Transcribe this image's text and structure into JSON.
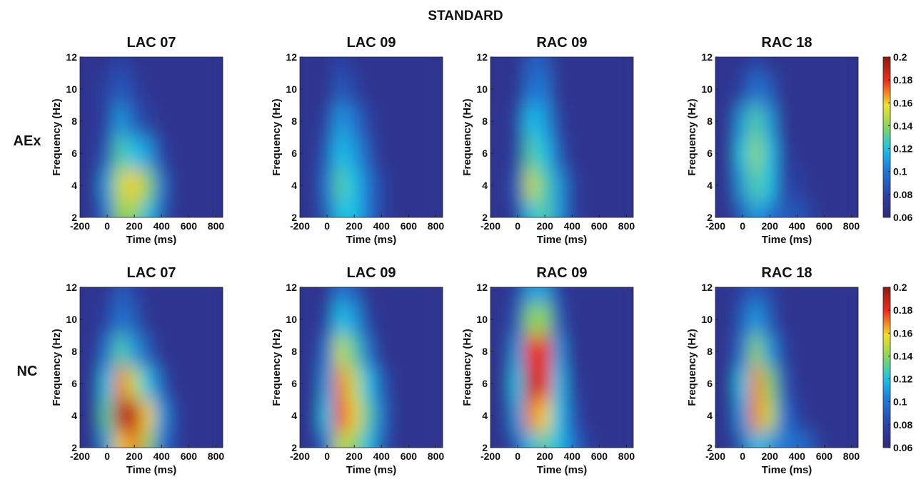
{
  "title": "STANDARD",
  "row_labels": [
    "AEx",
    "NC"
  ],
  "chart_data": [
    {
      "type": "heatmap",
      "title": "LAC 07",
      "xlabel": "Time (ms)",
      "ylabel": "Frequency (Hz)",
      "x": [
        -200,
        -100,
        0,
        100,
        200,
        300,
        400,
        500,
        600,
        700,
        800
      ],
      "y": [
        2,
        4,
        6,
        8,
        10,
        12
      ],
      "z": [
        [
          0.07,
          0.07,
          0.1,
          0.14,
          0.14,
          0.12,
          0.09,
          0.07,
          0.07,
          0.07,
          0.07
        ],
        [
          0.07,
          0.07,
          0.11,
          0.15,
          0.16,
          0.14,
          0.1,
          0.07,
          0.07,
          0.07,
          0.07
        ],
        [
          0.07,
          0.07,
          0.09,
          0.13,
          0.12,
          0.11,
          0.08,
          0.07,
          0.07,
          0.07,
          0.07
        ],
        [
          0.07,
          0.07,
          0.08,
          0.11,
          0.09,
          0.08,
          0.07,
          0.07,
          0.07,
          0.07,
          0.07
        ],
        [
          0.07,
          0.07,
          0.08,
          0.09,
          0.08,
          0.07,
          0.07,
          0.07,
          0.07,
          0.07,
          0.07
        ],
        [
          0.07,
          0.07,
          0.07,
          0.08,
          0.07,
          0.07,
          0.07,
          0.07,
          0.07,
          0.07,
          0.07
        ]
      ],
      "xlim": [
        -200,
        850
      ],
      "ylim": [
        2,
        12
      ],
      "xticks": [
        -200,
        0,
        200,
        400,
        600,
        800
      ],
      "yticks": [
        2,
        4,
        6,
        8,
        10,
        12
      ],
      "zlim": [
        0.06,
        0.2
      ]
    },
    {
      "type": "heatmap",
      "title": "LAC 09",
      "xlabel": "Time (ms)",
      "ylabel": "Frequency (Hz)",
      "x": [
        -200,
        -100,
        0,
        100,
        200,
        300,
        400,
        500,
        600,
        700,
        800
      ],
      "y": [
        2,
        4,
        6,
        8,
        10,
        12
      ],
      "z": [
        [
          0.07,
          0.07,
          0.09,
          0.12,
          0.12,
          0.1,
          0.08,
          0.07,
          0.07,
          0.07,
          0.07
        ],
        [
          0.07,
          0.07,
          0.1,
          0.13,
          0.12,
          0.1,
          0.08,
          0.07,
          0.07,
          0.07,
          0.07
        ],
        [
          0.07,
          0.07,
          0.09,
          0.12,
          0.11,
          0.09,
          0.07,
          0.07,
          0.07,
          0.07,
          0.07
        ],
        [
          0.07,
          0.07,
          0.08,
          0.11,
          0.1,
          0.08,
          0.07,
          0.07,
          0.07,
          0.07,
          0.07
        ],
        [
          0.07,
          0.07,
          0.07,
          0.09,
          0.08,
          0.07,
          0.07,
          0.07,
          0.07,
          0.07,
          0.07
        ],
        [
          0.07,
          0.07,
          0.07,
          0.08,
          0.07,
          0.07,
          0.07,
          0.07,
          0.07,
          0.07,
          0.07
        ]
      ],
      "xlim": [
        -200,
        850
      ],
      "ylim": [
        2,
        12
      ],
      "xticks": [
        -200,
        0,
        200,
        400,
        600,
        800
      ],
      "yticks": [
        2,
        4,
        6,
        8,
        10,
        12
      ],
      "zlim": [
        0.06,
        0.2
      ]
    },
    {
      "type": "heatmap",
      "title": "RAC 09",
      "xlabel": "Time (ms)",
      "ylabel": "Frequency (Hz)",
      "x": [
        -200,
        -100,
        0,
        100,
        200,
        300,
        400,
        500,
        600,
        700,
        800
      ],
      "y": [
        2,
        4,
        6,
        8,
        10,
        12
      ],
      "z": [
        [
          0.07,
          0.07,
          0.08,
          0.12,
          0.13,
          0.11,
          0.08,
          0.07,
          0.07,
          0.07,
          0.07
        ],
        [
          0.07,
          0.07,
          0.09,
          0.15,
          0.13,
          0.11,
          0.08,
          0.07,
          0.07,
          0.07,
          0.07
        ],
        [
          0.07,
          0.07,
          0.08,
          0.13,
          0.12,
          0.09,
          0.07,
          0.07,
          0.07,
          0.07,
          0.07
        ],
        [
          0.07,
          0.07,
          0.08,
          0.12,
          0.11,
          0.08,
          0.07,
          0.07,
          0.07,
          0.07,
          0.07
        ],
        [
          0.07,
          0.07,
          0.07,
          0.1,
          0.1,
          0.07,
          0.07,
          0.07,
          0.07,
          0.07,
          0.07
        ],
        [
          0.07,
          0.07,
          0.07,
          0.09,
          0.09,
          0.07,
          0.07,
          0.07,
          0.07,
          0.07,
          0.07
        ]
      ],
      "xlim": [
        -200,
        850
      ],
      "ylim": [
        2,
        12
      ],
      "xticks": [
        -200,
        0,
        200,
        400,
        600,
        800
      ],
      "yticks": [
        2,
        4,
        6,
        8,
        10,
        12
      ],
      "zlim": [
        0.06,
        0.2
      ]
    },
    {
      "type": "heatmap",
      "title": "RAC 18",
      "xlabel": "Time (ms)",
      "ylabel": "Frequency (Hz)",
      "x": [
        -200,
        -100,
        0,
        100,
        200,
        300,
        400,
        500,
        600,
        700,
        800
      ],
      "y": [
        2,
        4,
        6,
        8,
        10,
        12
      ],
      "z": [
        [
          0.07,
          0.07,
          0.09,
          0.11,
          0.1,
          0.09,
          0.09,
          0.08,
          0.07,
          0.07,
          0.07
        ],
        [
          0.07,
          0.07,
          0.11,
          0.13,
          0.12,
          0.08,
          0.08,
          0.07,
          0.07,
          0.07,
          0.07
        ],
        [
          0.07,
          0.07,
          0.12,
          0.14,
          0.12,
          0.08,
          0.07,
          0.07,
          0.07,
          0.07,
          0.07
        ],
        [
          0.07,
          0.07,
          0.11,
          0.13,
          0.11,
          0.07,
          0.07,
          0.07,
          0.07,
          0.07,
          0.07
        ],
        [
          0.07,
          0.07,
          0.08,
          0.1,
          0.09,
          0.07,
          0.07,
          0.07,
          0.07,
          0.07,
          0.07
        ],
        [
          0.07,
          0.07,
          0.07,
          0.08,
          0.07,
          0.07,
          0.07,
          0.07,
          0.07,
          0.07,
          0.07
        ]
      ],
      "xlim": [
        -200,
        850
      ],
      "ylim": [
        2,
        12
      ],
      "xticks": [
        -200,
        0,
        200,
        400,
        600,
        800
      ],
      "yticks": [
        2,
        4,
        6,
        8,
        10,
        12
      ],
      "zlim": [
        0.06,
        0.2
      ],
      "colorbar": {
        "ticks": [
          0.06,
          0.08,
          0.1,
          0.12,
          0.14,
          0.16,
          0.18,
          0.2
        ]
      }
    },
    {
      "type": "heatmap",
      "title": "LAC 07",
      "xlabel": "Time (ms)",
      "ylabel": "Frequency (Hz)",
      "x": [
        -200,
        -100,
        0,
        100,
        200,
        300,
        400,
        500,
        600,
        700,
        800
      ],
      "y": [
        2,
        4,
        6,
        8,
        10,
        12
      ],
      "z": [
        [
          0.07,
          0.07,
          0.11,
          0.16,
          0.17,
          0.14,
          0.1,
          0.08,
          0.07,
          0.07,
          0.07
        ],
        [
          0.07,
          0.07,
          0.13,
          0.19,
          0.19,
          0.16,
          0.11,
          0.08,
          0.07,
          0.07,
          0.07
        ],
        [
          0.07,
          0.07,
          0.12,
          0.17,
          0.15,
          0.12,
          0.09,
          0.07,
          0.07,
          0.07,
          0.07
        ],
        [
          0.07,
          0.07,
          0.1,
          0.13,
          0.11,
          0.09,
          0.07,
          0.07,
          0.07,
          0.07,
          0.07
        ],
        [
          0.07,
          0.07,
          0.08,
          0.1,
          0.09,
          0.07,
          0.07,
          0.07,
          0.07,
          0.07,
          0.07
        ],
        [
          0.07,
          0.07,
          0.07,
          0.09,
          0.08,
          0.07,
          0.07,
          0.07,
          0.07,
          0.07,
          0.07
        ]
      ],
      "xlim": [
        -200,
        850
      ],
      "ylim": [
        2,
        12
      ],
      "xticks": [
        -200,
        0,
        200,
        400,
        600,
        800
      ],
      "yticks": [
        2,
        4,
        6,
        8,
        10,
        12
      ],
      "zlim": [
        0.06,
        0.2
      ]
    },
    {
      "type": "heatmap",
      "title": "LAC 09",
      "xlabel": "Time (ms)",
      "ylabel": "Frequency (Hz)",
      "x": [
        -200,
        -100,
        0,
        100,
        200,
        300,
        400,
        500,
        600,
        700,
        800
      ],
      "y": [
        2,
        4,
        6,
        8,
        10,
        12
      ],
      "z": [
        [
          0.07,
          0.07,
          0.1,
          0.15,
          0.14,
          0.12,
          0.09,
          0.07,
          0.07,
          0.07,
          0.07
        ],
        [
          0.07,
          0.07,
          0.12,
          0.18,
          0.16,
          0.13,
          0.1,
          0.07,
          0.07,
          0.07,
          0.07
        ],
        [
          0.07,
          0.07,
          0.11,
          0.17,
          0.15,
          0.12,
          0.09,
          0.07,
          0.07,
          0.07,
          0.07
        ],
        [
          0.07,
          0.07,
          0.1,
          0.15,
          0.13,
          0.1,
          0.07,
          0.07,
          0.07,
          0.07,
          0.07
        ],
        [
          0.07,
          0.07,
          0.08,
          0.12,
          0.11,
          0.08,
          0.07,
          0.07,
          0.07,
          0.07,
          0.07
        ],
        [
          0.07,
          0.07,
          0.07,
          0.1,
          0.09,
          0.07,
          0.07,
          0.07,
          0.07,
          0.07,
          0.07
        ]
      ],
      "xlim": [
        -200,
        850
      ],
      "ylim": [
        2,
        12
      ],
      "xticks": [
        -200,
        0,
        200,
        400,
        600,
        800
      ],
      "yticks": [
        2,
        4,
        6,
        8,
        10,
        12
      ],
      "zlim": [
        0.06,
        0.2
      ]
    },
    {
      "type": "heatmap",
      "title": "RAC 09",
      "xlabel": "Time (ms)",
      "ylabel": "Frequency (Hz)",
      "x": [
        -200,
        -100,
        0,
        100,
        200,
        300,
        400,
        500,
        600,
        700,
        800
      ],
      "y": [
        2,
        4,
        6,
        8,
        10,
        12
      ],
      "z": [
        [
          0.07,
          0.07,
          0.09,
          0.12,
          0.13,
          0.12,
          0.1,
          0.08,
          0.07,
          0.07,
          0.07
        ],
        [
          0.07,
          0.07,
          0.11,
          0.17,
          0.16,
          0.12,
          0.09,
          0.07,
          0.07,
          0.07,
          0.07
        ],
        [
          0.07,
          0.07,
          0.12,
          0.19,
          0.18,
          0.12,
          0.08,
          0.07,
          0.07,
          0.07,
          0.07
        ],
        [
          0.07,
          0.07,
          0.11,
          0.18,
          0.18,
          0.11,
          0.07,
          0.07,
          0.07,
          0.07,
          0.07
        ],
        [
          0.07,
          0.07,
          0.09,
          0.14,
          0.14,
          0.09,
          0.07,
          0.07,
          0.07,
          0.07,
          0.07
        ],
        [
          0.07,
          0.07,
          0.08,
          0.11,
          0.11,
          0.08,
          0.07,
          0.07,
          0.07,
          0.07,
          0.07
        ]
      ],
      "xlim": [
        -200,
        850
      ],
      "ylim": [
        2,
        12
      ],
      "xticks": [
        -200,
        0,
        200,
        400,
        600,
        800
      ],
      "yticks": [
        2,
        4,
        6,
        8,
        10,
        12
      ],
      "zlim": [
        0.06,
        0.2
      ]
    },
    {
      "type": "heatmap",
      "title": "RAC 18",
      "xlabel": "Time (ms)",
      "ylabel": "Frequency (Hz)",
      "x": [
        -200,
        -100,
        0,
        100,
        200,
        300,
        400,
        500,
        600,
        700,
        800
      ],
      "y": [
        2,
        4,
        6,
        8,
        10,
        12
      ],
      "z": [
        [
          0.07,
          0.07,
          0.09,
          0.12,
          0.11,
          0.1,
          0.1,
          0.09,
          0.07,
          0.07,
          0.07
        ],
        [
          0.07,
          0.07,
          0.11,
          0.17,
          0.15,
          0.1,
          0.08,
          0.07,
          0.07,
          0.07,
          0.07
        ],
        [
          0.07,
          0.07,
          0.12,
          0.17,
          0.14,
          0.09,
          0.07,
          0.07,
          0.07,
          0.07,
          0.07
        ],
        [
          0.07,
          0.07,
          0.1,
          0.14,
          0.11,
          0.08,
          0.07,
          0.07,
          0.07,
          0.07,
          0.07
        ],
        [
          0.07,
          0.07,
          0.09,
          0.11,
          0.09,
          0.07,
          0.07,
          0.07,
          0.07,
          0.07,
          0.07
        ],
        [
          0.07,
          0.07,
          0.08,
          0.09,
          0.08,
          0.07,
          0.07,
          0.07,
          0.07,
          0.07,
          0.07
        ]
      ],
      "xlim": [
        -200,
        850
      ],
      "ylim": [
        2,
        12
      ],
      "xticks": [
        -200,
        0,
        200,
        400,
        600,
        800
      ],
      "yticks": [
        2,
        4,
        6,
        8,
        10,
        12
      ],
      "zlim": [
        0.06,
        0.2
      ],
      "colorbar": {
        "ticks": [
          0.06,
          0.08,
          0.1,
          0.12,
          0.14,
          0.16,
          0.18,
          0.2
        ]
      }
    }
  ]
}
